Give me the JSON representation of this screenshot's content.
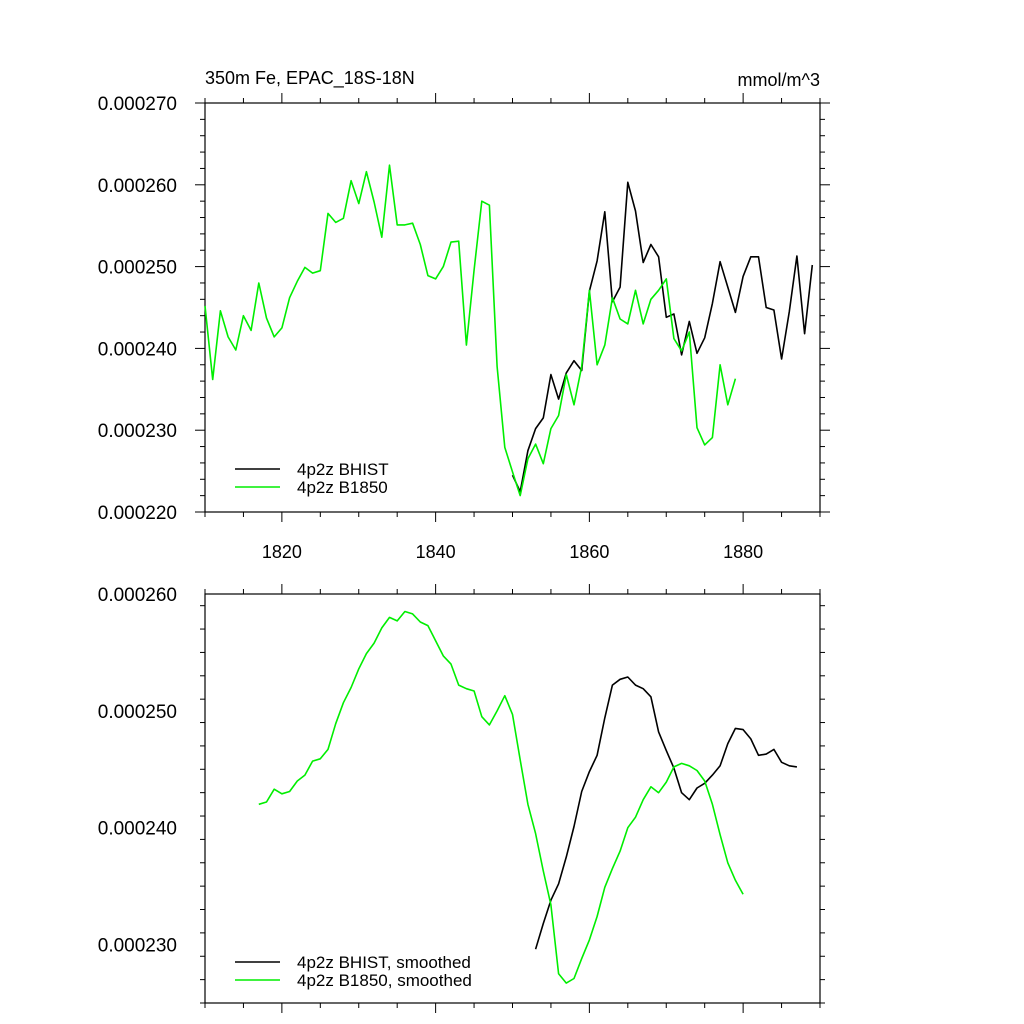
{
  "chart_data": [
    {
      "type": "line",
      "title": "350m Fe, EPAC_18S-18N",
      "units": "mmol/m^3",
      "xlabel": "",
      "ylabel": "",
      "xlim": [
        1810,
        1890
      ],
      "ylim": [
        0.00022,
        0.00027
      ],
      "x_ticks": [
        1820,
        1840,
        1860,
        1880
      ],
      "x_tick_labels": [
        "1820",
        "1840",
        "1860",
        "1880"
      ],
      "y_ticks": [
        0.00022,
        0.00023,
        0.00024,
        0.00025,
        0.00026,
        0.00027
      ],
      "y_tick_labels": [
        "0.000220",
        "0.000230",
        "0.000240",
        "0.000250",
        "0.000260",
        "0.000270"
      ],
      "legend_position": "bottom-left",
      "series": [
        {
          "name": "4p2z BHIST",
          "color": "#000000",
          "x": [
            1850,
            1851,
            1852,
            1853,
            1854,
            1855,
            1856,
            1857,
            1858,
            1859,
            1860,
            1861,
            1862,
            1863,
            1864,
            1865,
            1866,
            1867,
            1868,
            1869,
            1870,
            1871,
            1872,
            1873,
            1874,
            1875,
            1876,
            1877,
            1878,
            1879,
            1880,
            1881,
            1882,
            1883,
            1884,
            1885,
            1886,
            1887,
            1888,
            1889
          ],
          "y": [
            0.0002245,
            0.0002225,
            0.0002275,
            0.0002302,
            0.0002315,
            0.0002368,
            0.0002338,
            0.000237,
            0.0002385,
            0.0002373,
            0.000247,
            0.0002507,
            0.0002567,
            0.0002457,
            0.0002475,
            0.0002603,
            0.0002568,
            0.0002505,
            0.0002527,
            0.0002512,
            0.0002438,
            0.0002442,
            0.0002392,
            0.0002433,
            0.0002394,
            0.0002413,
            0.0002455,
            0.0002506,
            0.0002475,
            0.0002444,
            0.0002488,
            0.0002512,
            0.0002512,
            0.000245,
            0.0002447,
            0.0002387,
            0.0002445,
            0.0002513,
            0.0002418,
            0.0002502
          ]
        },
        {
          "name": "4p2z B1850",
          "color": "#00ee00",
          "x": [
            1810,
            1811,
            1812,
            1813,
            1814,
            1815,
            1816,
            1817,
            1818,
            1819,
            1820,
            1821,
            1822,
            1823,
            1824,
            1825,
            1826,
            1827,
            1828,
            1829,
            1830,
            1831,
            1832,
            1833,
            1834,
            1835,
            1836,
            1837,
            1838,
            1839,
            1840,
            1841,
            1842,
            1843,
            1844,
            1845,
            1846,
            1847,
            1848,
            1849,
            1850,
            1851,
            1852,
            1853,
            1854,
            1855,
            1856,
            1857,
            1858,
            1859,
            1860,
            1861,
            1862,
            1863,
            1864,
            1865,
            1866,
            1867,
            1868,
            1869,
            1870,
            1871,
            1872,
            1873,
            1874,
            1875,
            1876,
            1877,
            1878,
            1879
          ],
          "y": [
            0.0002452,
            0.0002362,
            0.0002446,
            0.0002414,
            0.0002398,
            0.000244,
            0.0002422,
            0.000248,
            0.0002437,
            0.0002414,
            0.0002425,
            0.0002462,
            0.0002482,
            0.0002499,
            0.0002492,
            0.0002495,
            0.0002565,
            0.0002554,
            0.0002559,
            0.0002605,
            0.0002577,
            0.0002616,
            0.0002579,
            0.0002536,
            0.0002624,
            0.0002551,
            0.0002551,
            0.0002553,
            0.0002527,
            0.0002489,
            0.0002485,
            0.00025,
            0.000253,
            0.0002531,
            0.0002404,
            0.0002496,
            0.000258,
            0.0002575,
            0.0002378,
            0.0002279,
            0.0002249,
            0.000222,
            0.0002265,
            0.0002283,
            0.0002259,
            0.0002302,
            0.0002318,
            0.0002368,
            0.0002331,
            0.0002378,
            0.0002471,
            0.000238,
            0.0002404,
            0.0002462,
            0.0002436,
            0.000243,
            0.0002471,
            0.000243,
            0.000246,
            0.0002471,
            0.0002485,
            0.0002412,
            0.0002397,
            0.000242,
            0.0002303,
            0.0002282,
            0.0002291,
            0.000238,
            0.0002331,
            0.0002363
          ]
        }
      ]
    },
    {
      "type": "line",
      "title": "",
      "xlabel": "",
      "ylabel": "",
      "xlim": [
        1810,
        1890
      ],
      "ylim": [
        0.000225,
        0.00026
      ],
      "x_ticks": [
        1820,
        1840,
        1860,
        1880
      ],
      "y_ticks": [
        0.00023,
        0.00024,
        0.00025,
        0.00026
      ],
      "y_tick_labels": [
        "0.000230",
        "0.000240",
        "0.000250",
        "0.000260"
      ],
      "legend_position": "bottom-left",
      "series": [
        {
          "name": "4p2z BHIST, smoothed",
          "color": "#000000",
          "x": [
            1853,
            1854,
            1855,
            1856,
            1857,
            1858,
            1859,
            1860,
            1861,
            1862,
            1863,
            1864,
            1865,
            1866,
            1867,
            1868,
            1869,
            1870,
            1871,
            1872,
            1873,
            1874,
            1875,
            1876,
            1877,
            1878,
            1879,
            1880,
            1881,
            1882,
            1883,
            1884,
            1885,
            1886,
            1887
          ],
          "y": [
            0.0002296,
            0.0002318,
            0.0002338,
            0.0002352,
            0.0002375,
            0.0002401,
            0.0002431,
            0.0002448,
            0.0002462,
            0.0002494,
            0.0002522,
            0.0002527,
            0.0002529,
            0.0002522,
            0.0002519,
            0.0002512,
            0.0002482,
            0.0002466,
            0.0002451,
            0.000243,
            0.0002424,
            0.0002434,
            0.0002438,
            0.0002445,
            0.0002453,
            0.0002472,
            0.0002485,
            0.0002484,
            0.0002476,
            0.0002462,
            0.0002463,
            0.0002467,
            0.0002456,
            0.0002453,
            0.0002452
          ]
        },
        {
          "name": "4p2z B1850, smoothed",
          "color": "#00ee00",
          "x": [
            1817,
            1818,
            1819,
            1820,
            1821,
            1822,
            1823,
            1824,
            1825,
            1826,
            1827,
            1828,
            1829,
            1830,
            1831,
            1832,
            1833,
            1834,
            1835,
            1836,
            1837,
            1838,
            1839,
            1840,
            1841,
            1842,
            1843,
            1844,
            1845,
            1846,
            1847,
            1848,
            1849,
            1850,
            1851,
            1852,
            1853,
            1854,
            1855,
            1856,
            1857,
            1858,
            1859,
            1860,
            1861,
            1862,
            1863,
            1864,
            1865,
            1866,
            1867,
            1868,
            1869,
            1870,
            1871,
            1872,
            1873,
            1874,
            1875,
            1876,
            1877,
            1878,
            1879,
            1880
          ],
          "y": [
            0.000242,
            0.0002422,
            0.0002433,
            0.0002429,
            0.0002431,
            0.000244,
            0.0002445,
            0.0002457,
            0.0002459,
            0.0002467,
            0.0002489,
            0.0002507,
            0.000252,
            0.0002536,
            0.0002549,
            0.0002558,
            0.0002571,
            0.000258,
            0.0002577,
            0.0002585,
            0.0002583,
            0.0002576,
            0.0002573,
            0.000256,
            0.0002547,
            0.000254,
            0.0002522,
            0.0002519,
            0.0002517,
            0.0002495,
            0.0002488,
            0.00025,
            0.0002513,
            0.0002497,
            0.0002458,
            0.000242,
            0.0002395,
            0.0002363,
            0.0002334,
            0.0002275,
            0.0002267,
            0.0002271,
            0.0002288,
            0.0002304,
            0.0002324,
            0.0002349,
            0.0002365,
            0.000238,
            0.00024,
            0.0002409,
            0.0002424,
            0.0002435,
            0.000243,
            0.0002439,
            0.0002452,
            0.0002455,
            0.0002453,
            0.0002449,
            0.000244,
            0.000242,
            0.0002394,
            0.000237,
            0.0002355,
            0.0002343
          ]
        }
      ]
    }
  ]
}
